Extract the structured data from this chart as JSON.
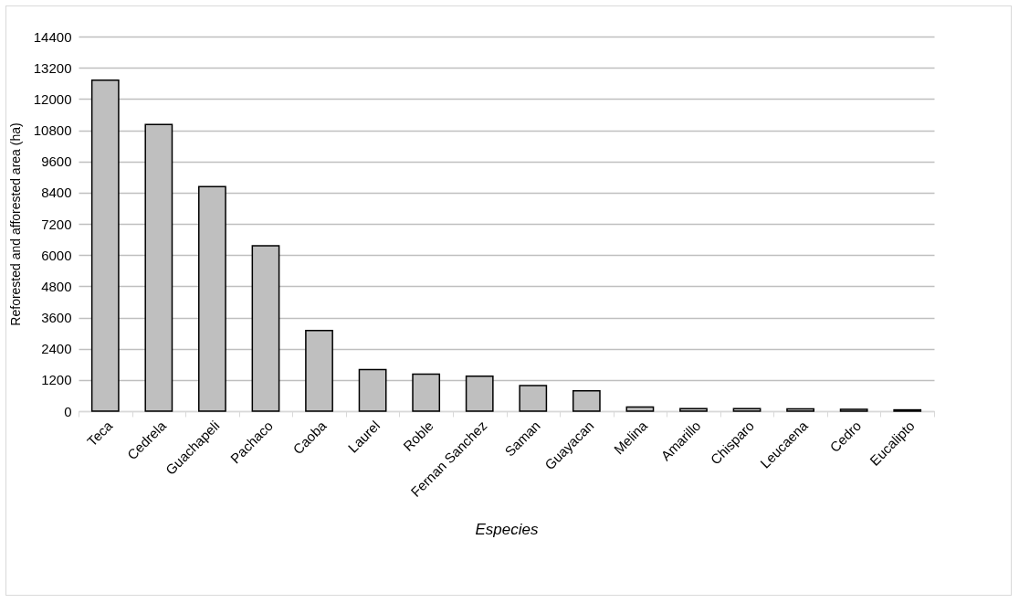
{
  "chart_data": {
    "type": "bar",
    "xlabel": "Especies",
    "ylabel": "Reforested and afforested area (ha)",
    "categories": [
      "Teca",
      "Cedrela",
      "Guachapeli",
      "Pachaco",
      "Caoba",
      "Laurel",
      "Roble",
      "Fernan Sanchez",
      "Saman",
      "Guayacan",
      "Melina",
      "Amarillo",
      "Chisparo",
      "Leucaena",
      "Cedro",
      "Eucalipto"
    ],
    "values": [
      12720,
      11020,
      8630,
      6360,
      3100,
      1600,
      1420,
      1340,
      980,
      780,
      160,
      100,
      100,
      90,
      70,
      50
    ],
    "color": "#bfbfbf",
    "ylim": [
      0,
      14400
    ],
    "yticks": [
      0,
      1200,
      2400,
      3600,
      4800,
      6000,
      7200,
      8400,
      9600,
      10800,
      12000,
      13200,
      14400
    ],
    "grid": "y"
  }
}
